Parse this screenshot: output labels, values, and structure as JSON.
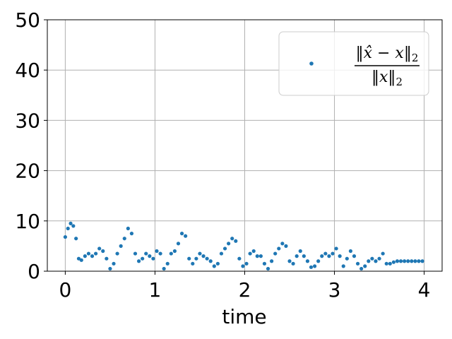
{
  "chart_data": {
    "type": "scatter",
    "xlabel": "time",
    "ylabel": "",
    "xlim": [
      -0.2,
      4.2
    ],
    "ylim": [
      0,
      50
    ],
    "xticks": [
      0,
      1,
      2,
      3,
      4
    ],
    "yticks": [
      0,
      10,
      20,
      30,
      40,
      50
    ],
    "grid": true,
    "legend": {
      "position": "top-right",
      "label": "‖x̂ − x‖₂ / ‖x‖₂"
    },
    "marker_color": "#1f77b4",
    "series": [
      {
        "x": [
          0.0,
          0.03,
          0.06,
          0.09,
          0.12,
          0.15,
          0.18,
          0.22,
          0.26,
          0.3,
          0.34,
          0.38,
          0.42,
          0.46,
          0.5,
          0.54,
          0.58,
          0.62,
          0.66,
          0.7,
          0.74,
          0.78,
          0.82,
          0.86,
          0.9,
          0.94,
          0.98,
          1.02,
          1.06,
          1.1,
          1.14,
          1.18,
          1.22,
          1.26,
          1.3,
          1.34,
          1.38,
          1.42,
          1.46,
          1.5,
          1.54,
          1.58,
          1.62,
          1.66,
          1.7,
          1.74,
          1.78,
          1.82,
          1.86,
          1.9,
          1.94,
          1.98,
          2.02,
          2.06,
          2.1,
          2.14,
          2.18,
          2.22,
          2.26,
          2.3,
          2.34,
          2.38,
          2.42,
          2.46,
          2.5,
          2.54,
          2.58,
          2.62,
          2.66,
          2.7,
          2.74,
          2.78,
          2.82,
          2.86,
          2.9,
          2.94,
          2.98,
          3.02,
          3.06,
          3.1,
          3.14,
          3.18,
          3.22,
          3.26,
          3.3,
          3.34,
          3.38,
          3.42,
          3.46,
          3.5,
          3.54,
          3.58,
          3.62,
          3.66,
          3.7,
          3.74,
          3.78,
          3.82,
          3.86,
          3.9,
          3.94,
          3.98
        ],
        "values": [
          6.8,
          8.5,
          9.5,
          9.0,
          6.5,
          2.5,
          2.2,
          3.0,
          3.5,
          3.0,
          3.5,
          4.5,
          4.0,
          2.5,
          0.5,
          1.5,
          3.5,
          5.0,
          6.5,
          8.5,
          7.5,
          3.5,
          2.0,
          2.5,
          3.5,
          3.0,
          2.5,
          4.0,
          3.5,
          0.5,
          1.5,
          3.5,
          4.0,
          5.5,
          7.5,
          7.0,
          2.5,
          1.5,
          2.5,
          3.5,
          3.0,
          2.5,
          2.0,
          1.0,
          1.5,
          3.5,
          4.5,
          5.5,
          6.5,
          6.0,
          2.5,
          1.0,
          1.5,
          3.5,
          4.0,
          3.0,
          3.0,
          1.5,
          0.5,
          2.0,
          3.5,
          4.5,
          5.5,
          5.0,
          2.0,
          1.5,
          3.0,
          4.0,
          3.0,
          2.0,
          0.8,
          1.0,
          2.0,
          3.0,
          3.5,
          3.0,
          3.5,
          4.5,
          3.0,
          1.0,
          2.5,
          4.0,
          3.0,
          1.5,
          0.5,
          1.0,
          2.0,
          2.5,
          2.0,
          2.5,
          3.5,
          1.5,
          1.5,
          1.8,
          2.0,
          2.0,
          2.0,
          2.0,
          2.0,
          2.0,
          2.0,
          2.0
        ]
      }
    ]
  }
}
